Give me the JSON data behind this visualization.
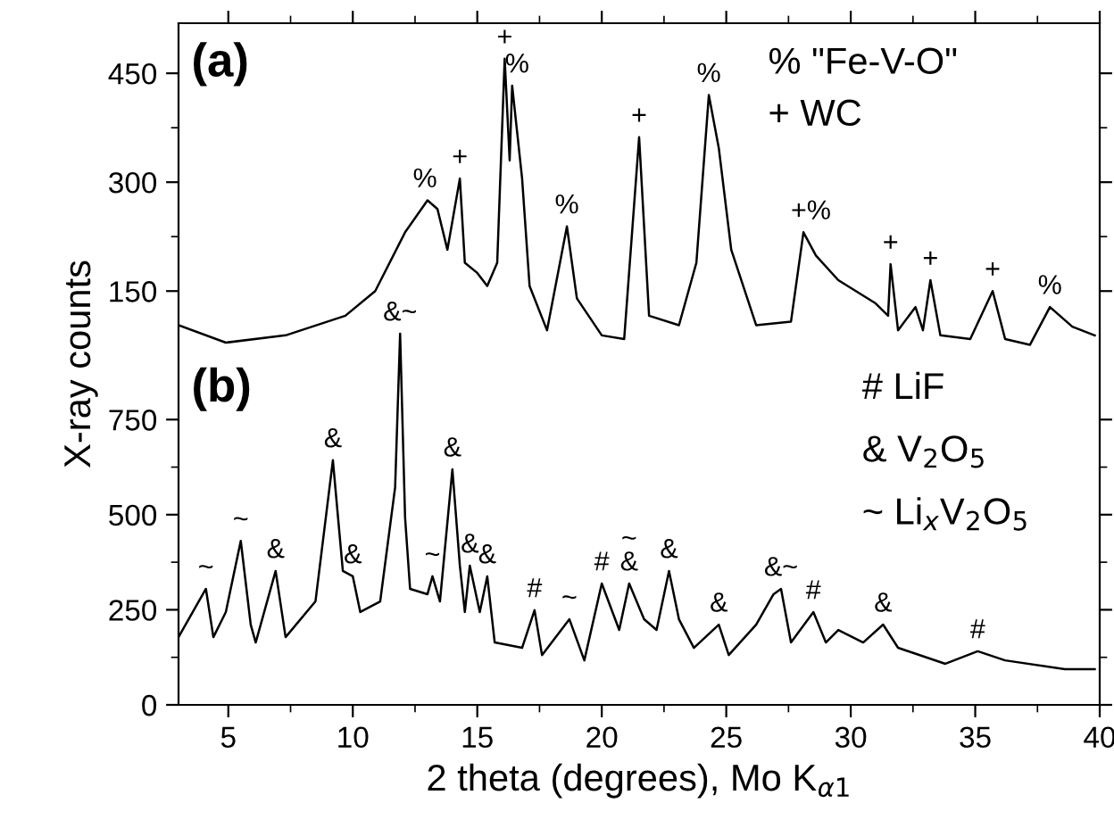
{
  "chart_data": [
    {
      "type": "line",
      "xlim": [
        3,
        40
      ],
      "xticks": [
        5,
        10,
        15,
        20,
        25,
        30,
        35,
        40
      ],
      "ylim": [
        -420,
        519
      ],
      "yticks": [
        150,
        300,
        450
      ],
      "tick_labels": "y",
      "series": [
        {
          "color": "#000000",
          "x": [
            3.0,
            4.9,
            7.3,
            9.7,
            10.9,
            12.1,
            13.0,
            13.4,
            13.8,
            14.3,
            14.5,
            15.0,
            15.4,
            15.8,
            16.1,
            16.3,
            16.4,
            16.8,
            17.1,
            17.8,
            18.6,
            19.0,
            20.0,
            20.9,
            21.5,
            21.9,
            23.1,
            23.8,
            24.3,
            24.7,
            25.2,
            26.2,
            27.6,
            28.1,
            28.6,
            29.5,
            31.0,
            31.5,
            31.6,
            31.9,
            32.6,
            32.9,
            33.2,
            33.6,
            34.8,
            35.7,
            36.2,
            37.2,
            38.0,
            38.9,
            39.8
          ],
          "values": [
            103,
            79,
            89,
            116,
            150,
            231,
            275,
            263,
            207,
            305,
            189,
            175,
            157,
            189,
            470,
            330,
            433,
            305,
            157,
            96,
            239,
            140,
            89,
            84,
            362,
            116,
            103,
            189,
            420,
            347,
            207,
            103,
            108,
            231,
            199,
            165,
            133,
            116,
            187,
            96,
            128,
            96,
            165,
            89,
            84,
            150,
            84,
            76,
            128,
            101,
            89
          ]
        }
      ],
      "annotations": [
        "(a)",
        "% \"Fe-V-O\"",
        "+ WC",
        {
          "text": "%",
          "x": 12.9,
          "y": 275
        },
        {
          "text": "+",
          "x": 14.3,
          "y": 305
        },
        {
          "text": "+",
          "x": 16.1,
          "y": 470
        },
        {
          "text": "%",
          "x": 16.6,
          "y": 433
        },
        {
          "text": "%",
          "x": 18.6,
          "y": 239
        },
        {
          "text": "+",
          "x": 21.5,
          "y": 362
        },
        {
          "text": "%",
          "x": 24.3,
          "y": 420
        },
        {
          "text": "+%",
          "x": 28.4,
          "y": 231
        },
        {
          "text": "+",
          "x": 31.6,
          "y": 187
        },
        {
          "text": "+",
          "x": 33.2,
          "y": 165
        },
        {
          "text": "+",
          "x": 35.7,
          "y": 150
        },
        {
          "text": "%",
          "x": 38.0,
          "y": 128
        }
      ]
    },
    {
      "type": "line",
      "xlim": [
        3,
        40
      ],
      "xticks": [
        5,
        10,
        15,
        20,
        25,
        30,
        35,
        40
      ],
      "ylim": [
        0,
        1792
      ],
      "yticks": [
        0,
        250,
        500,
        750
      ],
      "xlabel": "2 theta (degrees), Mo K$_{α1}$",
      "ylabel": "X-ray counts",
      "series": [
        {
          "color": "#000000",
          "x": [
            3.0,
            4.1,
            4.4,
            4.9,
            5.5,
            5.9,
            6.1,
            6.9,
            7.3,
            8.5,
            9.2,
            9.6,
            10.0,
            10.3,
            11.1,
            11.7,
            11.9,
            12.1,
            12.3,
            13.0,
            13.2,
            13.5,
            14.0,
            14.3,
            14.5,
            14.7,
            15.1,
            15.4,
            15.7,
            16.8,
            17.3,
            17.6,
            18.7,
            19.3,
            20.0,
            20.7,
            21.1,
            21.7,
            22.2,
            22.7,
            23.1,
            23.7,
            24.7,
            25.1,
            26.2,
            26.9,
            27.2,
            27.6,
            28.5,
            29.0,
            29.5,
            30.5,
            31.3,
            31.9,
            33.8,
            35.1,
            36.2,
            38.6,
            39.8
          ],
          "values": [
            178,
            305,
            178,
            244,
            431,
            211,
            164,
            352,
            178,
            272,
            643,
            352,
            338,
            244,
            272,
            572,
            976,
            492,
            305,
            291,
            338,
            272,
            619,
            366,
            244,
            366,
            244,
            338,
            164,
            150,
            249,
            131,
            225,
            117,
            319,
            197,
            319,
            225,
            197,
            352,
            225,
            150,
            211,
            131,
            211,
            291,
            305,
            164,
            244,
            164,
            197,
            164,
            211,
            150,
            108,
            141,
            117,
            94,
            94
          ]
        }
      ],
      "annotations": [
        "(b)",
        "# LiF",
        "& V$_{2}$O$_{5}$",
        "~ Li$_{x}$V$_{2}$O$_{5}$",
        {
          "text": "~",
          "x": 4.1,
          "y": 305
        },
        {
          "text": "~",
          "x": 5.5,
          "y": 431
        },
        {
          "text": "&",
          "x": 6.9,
          "y": 352
        },
        {
          "text": "&",
          "x": 9.2,
          "y": 643
        },
        {
          "text": "&",
          "x": 10.0,
          "y": 338
        },
        {
          "text": "&~",
          "x": 11.9,
          "y": 976
        },
        {
          "text": "~",
          "x": 13.2,
          "y": 338
        },
        {
          "text": "&",
          "x": 14.0,
          "y": 619
        },
        {
          "text": "&",
          "x": 14.7,
          "y": 366
        },
        {
          "text": "&",
          "x": 15.4,
          "y": 338
        },
        {
          "text": "#",
          "x": 17.3,
          "y": 249
        },
        {
          "text": "~",
          "x": 18.7,
          "y": 225
        },
        {
          "text": "#",
          "x": 20.0,
          "y": 319
        },
        {
          "text": "~\n&",
          "x": 21.1,
          "y": 319
        },
        {
          "text": "&",
          "x": 22.7,
          "y": 352
        },
        {
          "text": "&",
          "x": 24.7,
          "y": 211
        },
        {
          "text": "&~",
          "x": 27.2,
          "y": 305
        },
        {
          "text": "#",
          "x": 28.5,
          "y": 244
        },
        {
          "text": "&",
          "x": 31.3,
          "y": 211
        },
        {
          "text": "#",
          "x": 35.1,
          "y": 141
        }
      ]
    }
  ]
}
